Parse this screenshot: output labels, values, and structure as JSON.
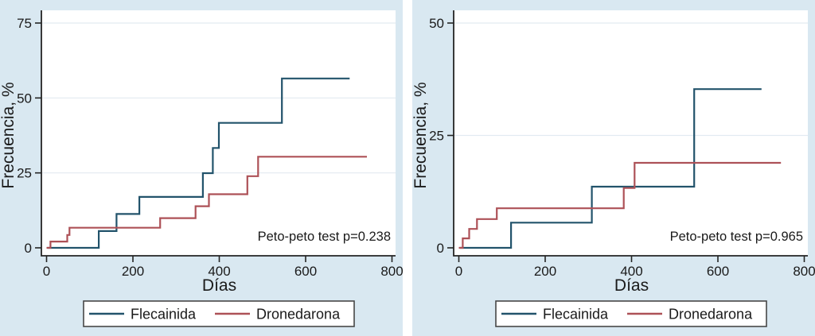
{
  "figure": {
    "description": "Two cumulative incidence (Kaplan-Meier failure) step plots comparing Flecainida vs Dronedarona",
    "style": {
      "panel_background": "#d9e8f1",
      "plot_background": "#ffffff",
      "gridline_color": "#e2eaf1",
      "axis_color": "#242424",
      "text_color": "#1a1a1a",
      "legend_border_color": "#474747",
      "flecainida_color": "#22536b",
      "dronedarona_color": "#ad5157"
    }
  },
  "chart_data": [
    {
      "type": "line",
      "subtype": "step",
      "title": "",
      "xlabel": "Días",
      "ylabel": "Frecuencia, %",
      "annotation": "Peto-peto test p=0.238",
      "x_ticks": [
        0,
        200,
        400,
        600,
        800
      ],
      "y_ticks": [
        0,
        25,
        50,
        75
      ],
      "xlim": [
        0,
        800
      ],
      "ylim": [
        0,
        75
      ],
      "grid": "horizontal",
      "legend_position": "bottom",
      "series": [
        {
          "name": "Flecainida",
          "color": "#22536b",
          "points": [
            [
              2,
              0
            ],
            [
              121,
              5.6
            ],
            [
              162,
              11.3
            ],
            [
              215,
              17.0
            ],
            [
              362,
              24.9
            ],
            [
              385,
              33.3
            ],
            [
              399,
              41.7
            ],
            [
              545,
              56.5
            ],
            [
              702,
              56.5
            ]
          ]
        },
        {
          "name": "Dronedarona",
          "color": "#ad5157",
          "points": [
            [
              0,
              0
            ],
            [
              9,
              2.1
            ],
            [
              48,
              4.3
            ],
            [
              53,
              6.7
            ],
            [
              263,
              9.9
            ],
            [
              345,
              13.9
            ],
            [
              376,
              17.9
            ],
            [
              465,
              23.9
            ],
            [
              490,
              30.4
            ],
            [
              742,
              30.4
            ]
          ]
        }
      ]
    },
    {
      "type": "line",
      "subtype": "step",
      "title": "",
      "xlabel": "Días",
      "ylabel": "Frecuencia, %",
      "annotation": "Peto-peto test p=0.965",
      "x_ticks": [
        0,
        200,
        400,
        600,
        800
      ],
      "y_ticks": [
        0,
        25,
        50
      ],
      "xlim": [
        0,
        800
      ],
      "ylim": [
        0,
        50
      ],
      "grid": "horizontal",
      "legend_position": "bottom",
      "series": [
        {
          "name": "Flecainida",
          "color": "#22536b",
          "points": [
            [
              2,
              0
            ],
            [
              121,
              5.6
            ],
            [
              308,
              13.6
            ],
            [
              545,
              35.3
            ],
            [
              701,
              35.3
            ]
          ]
        },
        {
          "name": "Dronedarona",
          "color": "#ad5157",
          "points": [
            [
              0,
              0
            ],
            [
              9,
              2.1
            ],
            [
              24,
              4.2
            ],
            [
              42,
              6.4
            ],
            [
              88,
              8.8
            ],
            [
              382,
              13.3
            ],
            [
              407,
              18.9
            ],
            [
              746,
              18.9
            ]
          ]
        }
      ]
    }
  ]
}
